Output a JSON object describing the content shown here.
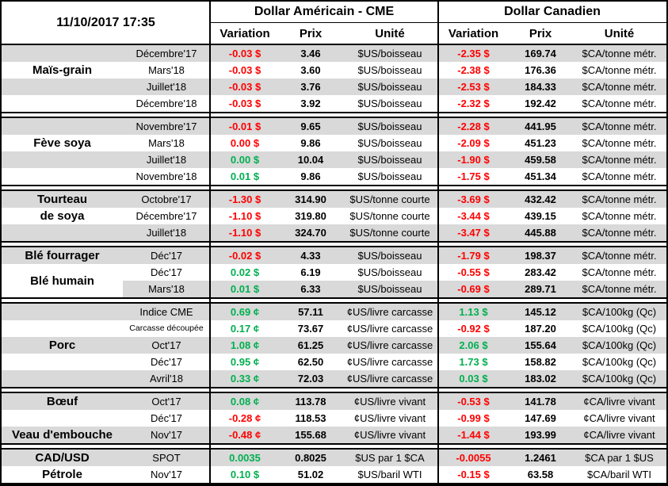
{
  "header": {
    "timestamp": "11/10/2017 17:35",
    "us_title": "Dollar Américain - CME",
    "ca_title": "Dollar Canadien",
    "columns": {
      "variation": "Variation",
      "prix": "Prix",
      "unite": "Unité"
    }
  },
  "colors": {
    "positive": "#00B050",
    "negative": "#FF0000",
    "stripe": "#D9D9D9",
    "border": "#000000"
  },
  "groups": [
    {
      "labels": [
        {
          "text": "Maïs-grain",
          "row": 1,
          "span": 1,
          "white_bg": false
        }
      ],
      "rows": [
        {
          "month": "Décembre'17",
          "us_var": "-0.03 $",
          "us_trend": "neg",
          "us_prix": "3.46",
          "us_unit": "$US/boisseau",
          "ca_var": "-2.35 $",
          "ca_trend": "neg",
          "ca_prix": "169.74",
          "ca_unit": "$CA/tonne métr."
        },
        {
          "month": "Mars'18",
          "us_var": "-0.03 $",
          "us_trend": "neg",
          "us_prix": "3.60",
          "us_unit": "$US/boisseau",
          "ca_var": "-2.38 $",
          "ca_trend": "neg",
          "ca_prix": "176.36",
          "ca_unit": "$CA/tonne métr."
        },
        {
          "month": "Juillet'18",
          "us_var": "-0.03 $",
          "us_trend": "neg",
          "us_prix": "3.76",
          "us_unit": "$US/boisseau",
          "ca_var": "-2.53 $",
          "ca_trend": "neg",
          "ca_prix": "184.33",
          "ca_unit": "$CA/tonne métr."
        },
        {
          "month": "Décembre'18",
          "us_var": "-0.03 $",
          "us_trend": "neg",
          "us_prix": "3.92",
          "us_unit": "$US/boisseau",
          "ca_var": "-2.32 $",
          "ca_trend": "neg",
          "ca_prix": "192.42",
          "ca_unit": "$CA/tonne métr."
        }
      ]
    },
    {
      "labels": [
        {
          "text": "Fève soya",
          "row": 1,
          "span": 1,
          "white_bg": false
        }
      ],
      "rows": [
        {
          "month": "Novembre'17",
          "us_var": "-0.01 $",
          "us_trend": "neg",
          "us_prix": "9.65",
          "us_unit": "$US/boisseau",
          "ca_var": "-2.28 $",
          "ca_trend": "neg",
          "ca_prix": "441.95",
          "ca_unit": "$CA/tonne métr."
        },
        {
          "month": "Mars'18",
          "us_var": "0.00 $",
          "us_trend": "neg",
          "us_prix": "9.86",
          "us_unit": "$US/boisseau",
          "ca_var": "-2.09 $",
          "ca_trend": "neg",
          "ca_prix": "451.23",
          "ca_unit": "$CA/tonne métr."
        },
        {
          "month": "Juillet'18",
          "us_var": "0.00 $",
          "us_trend": "pos",
          "us_prix": "10.04",
          "us_unit": "$US/boisseau",
          "ca_var": "-1.90 $",
          "ca_trend": "neg",
          "ca_prix": "459.58",
          "ca_unit": "$CA/tonne métr."
        },
        {
          "month": "Novembre'18",
          "us_var": "0.01 $",
          "us_trend": "pos",
          "us_prix": "9.86",
          "us_unit": "$US/boisseau",
          "ca_var": "-1.75 $",
          "ca_trend": "neg",
          "ca_prix": "451.34",
          "ca_unit": "$CA/tonne métr."
        }
      ]
    },
    {
      "labels": [
        {
          "text": "Tourteau",
          "row": 0,
          "span": 1,
          "white_bg": false
        },
        {
          "text": "de soya",
          "row": 1,
          "span": 1,
          "white_bg": false
        }
      ],
      "rows": [
        {
          "month": "Octobre'17",
          "us_var": "-1.30 $",
          "us_trend": "neg",
          "us_prix": "314.90",
          "us_unit": "$US/tonne courte",
          "ca_var": "-3.69 $",
          "ca_trend": "neg",
          "ca_prix": "432.42",
          "ca_unit": "$CA/tonne métr."
        },
        {
          "month": "Décembre'17",
          "us_var": "-1.10 $",
          "us_trend": "neg",
          "us_prix": "319.80",
          "us_unit": "$US/tonne courte",
          "ca_var": "-3.44 $",
          "ca_trend": "neg",
          "ca_prix": "439.15",
          "ca_unit": "$CA/tonne métr."
        },
        {
          "month": "Juillet'18",
          "us_var": "-1.10 $",
          "us_trend": "neg",
          "us_prix": "324.70",
          "us_unit": "$US/tonne courte",
          "ca_var": "-3.47 $",
          "ca_trend": "neg",
          "ca_prix": "445.88",
          "ca_unit": "$CA/tonne métr."
        }
      ]
    },
    {
      "labels": [
        {
          "text": "Blé fourrager",
          "row": 0,
          "span": 1,
          "white_bg": false
        },
        {
          "text": "Blé humain",
          "row": 1,
          "span": 2,
          "white_bg": true
        }
      ],
      "rows": [
        {
          "month": "Déc'17",
          "us_var": "-0.02 $",
          "us_trend": "neg",
          "us_prix": "4.33",
          "us_unit": "$US/boisseau",
          "ca_var": "-1.79 $",
          "ca_trend": "neg",
          "ca_prix": "198.37",
          "ca_unit": "$CA/tonne métr."
        },
        {
          "month": "Déc'17",
          "us_var": "0.02 $",
          "us_trend": "pos",
          "us_prix": "6.19",
          "us_unit": "$US/boisseau",
          "ca_var": "-0.55 $",
          "ca_trend": "neg",
          "ca_prix": "283.42",
          "ca_unit": "$CA/tonne métr."
        },
        {
          "month": "Mars'18",
          "us_var": "0.01 $",
          "us_trend": "pos",
          "us_prix": "6.33",
          "us_unit": "$US/boisseau",
          "ca_var": "-0.69 $",
          "ca_trend": "neg",
          "ca_prix": "289.71",
          "ca_unit": "$CA/tonne métr."
        }
      ]
    },
    {
      "labels": [
        {
          "text": "Porc",
          "row": 2,
          "span": 1,
          "white_bg": false
        }
      ],
      "rows": [
        {
          "month": "Indice CME",
          "us_var": "0.69 ¢",
          "us_trend": "pos",
          "us_prix": "57.11",
          "us_unit": "¢US/livre carcasse",
          "ca_var": "1.13 $",
          "ca_trend": "pos",
          "ca_prix": "145.12",
          "ca_unit": "$CA/100kg (Qc)"
        },
        {
          "month": "Carcasse découpée",
          "us_var": "0.17 ¢",
          "us_trend": "pos",
          "us_prix": "73.67",
          "us_unit": "¢US/livre carcasse",
          "ca_var": "-0.92 $",
          "ca_trend": "neg",
          "ca_prix": "187.20",
          "ca_unit": "$CA/100kg (Qc)"
        },
        {
          "month": "Oct'17",
          "us_var": "1.08 ¢",
          "us_trend": "pos",
          "us_prix": "61.25",
          "us_unit": "¢US/livre carcasse",
          "ca_var": "2.06 $",
          "ca_trend": "pos",
          "ca_prix": "155.64",
          "ca_unit": "$CA/100kg (Qc)"
        },
        {
          "month": "Déc'17",
          "us_var": "0.95 ¢",
          "us_trend": "pos",
          "us_prix": "62.50",
          "us_unit": "¢US/livre carcasse",
          "ca_var": "1.73 $",
          "ca_trend": "pos",
          "ca_prix": "158.82",
          "ca_unit": "$CA/100kg (Qc)"
        },
        {
          "month": "Avril'18",
          "us_var": "0.33 ¢",
          "us_trend": "pos",
          "us_prix": "72.03",
          "us_unit": "¢US/livre carcasse",
          "ca_var": "0.03 $",
          "ca_trend": "pos",
          "ca_prix": "183.02",
          "ca_unit": "$CA/100kg (Qc)"
        }
      ]
    },
    {
      "labels": [
        {
          "text": "Bœuf",
          "row": 0,
          "span": 1,
          "white_bg": false
        },
        {
          "text": "Veau d'embouche",
          "row": 2,
          "span": 1,
          "white_bg": false
        }
      ],
      "rows": [
        {
          "month": "Oct'17",
          "us_var": "0.08 ¢",
          "us_trend": "pos",
          "us_prix": "113.78",
          "us_unit": "¢US/livre vivant",
          "ca_var": "-0.53 $",
          "ca_trend": "neg",
          "ca_prix": "141.78",
          "ca_unit": "¢CA/livre vivant"
        },
        {
          "month": "Déc'17",
          "us_var": "-0.28 ¢",
          "us_trend": "neg",
          "us_prix": "118.53",
          "us_unit": "¢US/livre vivant",
          "ca_var": "-0.99 $",
          "ca_trend": "neg",
          "ca_prix": "147.69",
          "ca_unit": "¢CA/livre vivant"
        },
        {
          "month": "Nov'17",
          "us_var": "-0.48 ¢",
          "us_trend": "neg",
          "us_prix": "155.68",
          "us_unit": "¢US/livre vivant",
          "ca_var": "-1.44 $",
          "ca_trend": "neg",
          "ca_prix": "193.99",
          "ca_unit": "¢CA/livre vivant"
        }
      ]
    },
    {
      "labels": [
        {
          "text": "CAD/USD",
          "row": 0,
          "span": 1,
          "white_bg": false
        },
        {
          "text": "Pétrole",
          "row": 1,
          "span": 1,
          "white_bg": false
        }
      ],
      "rows": [
        {
          "month": "SPOT",
          "us_var": "0.0035",
          "us_trend": "pos",
          "us_prix": "0.8025",
          "us_unit": "$US par 1 $CA",
          "ca_var": "-0.0055",
          "ca_trend": "neg",
          "ca_prix": "1.2461",
          "ca_unit": "$CA par 1 $US"
        },
        {
          "month": "Nov'17",
          "us_var": "0.10 $",
          "us_trend": "pos",
          "us_prix": "51.02",
          "us_unit": "$US/baril WTI",
          "ca_var": "-0.15 $",
          "ca_trend": "neg",
          "ca_prix": "63.58",
          "ca_unit": "$CA/baril WTI"
        }
      ]
    }
  ]
}
